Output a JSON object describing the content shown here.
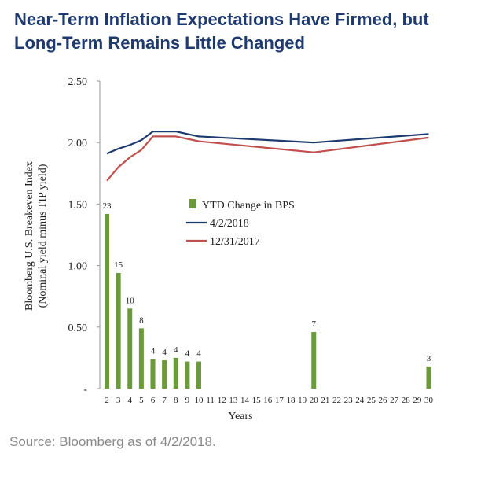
{
  "title_lines": [
    "Near-Term Inflation Expectations Have Firmed, but",
    "Long-Term Remains Little Changed"
  ],
  "source": "Source: Bloomberg as of 4/2/2018.",
  "chart_data": {
    "type": "bar+line",
    "xlabel": "Years",
    "ylabel_lines": [
      "Bloomberg U.S. Breakeven Index",
      "(Nominal yield minus TIP yield)"
    ],
    "ylim": [
      0,
      2.5
    ],
    "yticks": [
      {
        "value": 0,
        "label": "-"
      },
      {
        "value": 0.5,
        "label": "0.50"
      },
      {
        "value": 1.0,
        "label": "1.00"
      },
      {
        "value": 1.5,
        "label": "1.50"
      },
      {
        "value": 2.0,
        "label": "2.00"
      },
      {
        "value": 2.5,
        "label": "2.50"
      }
    ],
    "x_categories": [
      "2",
      "3",
      "4",
      "5",
      "6",
      "7",
      "8",
      "9",
      "10",
      "11",
      "12",
      "13",
      "14",
      "15",
      "16",
      "17",
      "18",
      "19",
      "20",
      "21",
      "22",
      "23",
      "24",
      "25",
      "26",
      "27",
      "28",
      "29",
      "30"
    ],
    "legend_position": "middle-left",
    "series": [
      {
        "name": "YTD Change in BPS",
        "kind": "bar",
        "color": "#6a9a3a",
        "points": [
          {
            "x": 2,
            "y": 1.42,
            "label": "23"
          },
          {
            "x": 3,
            "y": 0.94,
            "label": "15"
          },
          {
            "x": 4,
            "y": 0.65,
            "label": "10"
          },
          {
            "x": 5,
            "y": 0.49,
            "label": "8"
          },
          {
            "x": 6,
            "y": 0.24,
            "label": "4"
          },
          {
            "x": 7,
            "y": 0.23,
            "label": "4"
          },
          {
            "x": 8,
            "y": 0.25,
            "label": "4"
          },
          {
            "x": 9,
            "y": 0.22,
            "label": "4"
          },
          {
            "x": 10,
            "y": 0.22,
            "label": "4"
          },
          {
            "x": 20,
            "y": 0.46,
            "label": "7"
          },
          {
            "x": 30,
            "y": 0.18,
            "label": "3"
          }
        ]
      },
      {
        "name": "4/2/2018",
        "kind": "line",
        "color": "#1f3a6e",
        "points": [
          {
            "x": 2,
            "y": 1.91
          },
          {
            "x": 3,
            "y": 1.95
          },
          {
            "x": 4,
            "y": 1.98
          },
          {
            "x": 5,
            "y": 2.02
          },
          {
            "x": 6,
            "y": 2.09
          },
          {
            "x": 7,
            "y": 2.09
          },
          {
            "x": 8,
            "y": 2.09
          },
          {
            "x": 9,
            "y": 2.07
          },
          {
            "x": 10,
            "y": 2.05
          },
          {
            "x": 20,
            "y": 2.0
          },
          {
            "x": 30,
            "y": 2.07
          }
        ]
      },
      {
        "name": "12/31/2017",
        "kind": "line",
        "color": "#c0504d",
        "points": [
          {
            "x": 2,
            "y": 1.69
          },
          {
            "x": 3,
            "y": 1.8
          },
          {
            "x": 4,
            "y": 1.88
          },
          {
            "x": 5,
            "y": 1.94
          },
          {
            "x": 6,
            "y": 2.05
          },
          {
            "x": 7,
            "y": 2.05
          },
          {
            "x": 8,
            "y": 2.05
          },
          {
            "x": 9,
            "y": 2.03
          },
          {
            "x": 10,
            "y": 2.01
          },
          {
            "x": 20,
            "y": 1.92
          },
          {
            "x": 30,
            "y": 2.04
          }
        ]
      }
    ]
  }
}
